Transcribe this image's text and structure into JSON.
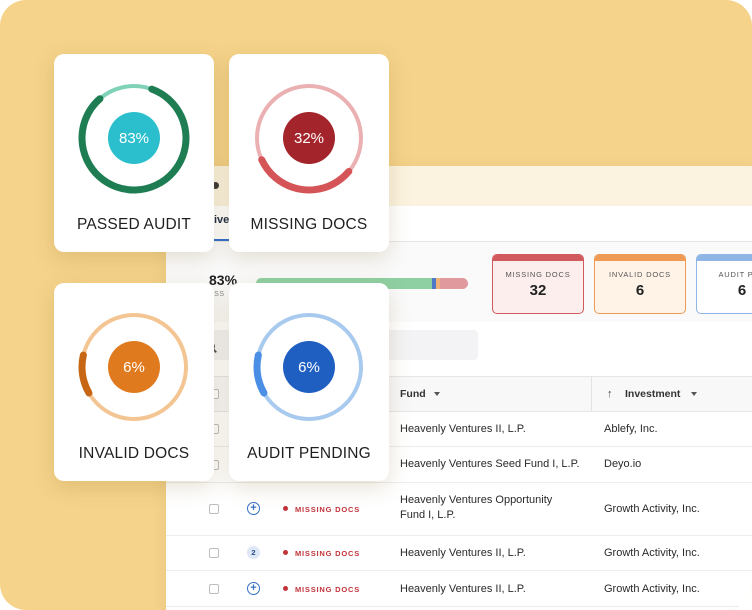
{
  "cards": [
    {
      "label": "PASSED AUDIT",
      "percent": "83%",
      "fraction": 0.83,
      "arc_color": "#1e7d52",
      "track_color": "#7fd2b8",
      "inner_color": "#2bbfcd",
      "text_color": "#ffffff"
    },
    {
      "label": "MISSING DOCS",
      "percent": "32%",
      "fraction": 0.32,
      "arc_color": "#d45457",
      "track_color": "#eab0b2",
      "inner_color": "#a3252b",
      "text_color": "#ffffff"
    },
    {
      "label": "INVALID DOCS",
      "percent": "6%",
      "fraction": 0.06,
      "arc_color": "#c76614",
      "track_color": "#f3c592",
      "inner_color": "#e07a1f",
      "text_color": "#ffffff"
    },
    {
      "label": "AUDIT PENDING",
      "percent": "6%",
      "fraction": 0.06,
      "arc_color": "#4a8ee6",
      "track_color": "#a9caef",
      "inner_color": "#1f5fc2",
      "text_color": "#ffffff"
    }
  ],
  "app": {
    "tab_fragment": "ive",
    "summary": {
      "percent": "83%",
      "sub": "ASS",
      "bar": [
        {
          "fraction": 0.83,
          "color": "#8fd0a3"
        },
        {
          "fraction": 0.02,
          "color": "#4f78c7"
        },
        {
          "fraction": 0.02,
          "color": "#f0b07a"
        },
        {
          "fraction": 0.13,
          "color": "#e09a9d"
        }
      ]
    },
    "stats": [
      {
        "label": "MISSING DOCS",
        "value": "32",
        "color": "#d05a5e",
        "bg": "#fdeeee"
      },
      {
        "label": "INVALID DOCS",
        "value": "6",
        "color": "#ee9a55",
        "bg": "#fff3e8"
      },
      {
        "label": "AUDIT PEN",
        "value": "6",
        "color": "#8fb5e6",
        "bg": "#ffffff"
      }
    ],
    "table": {
      "columns": {
        "fund": "Fund",
        "investment": "Investment"
      },
      "rows": [
        {
          "marker": "",
          "status": "",
          "fund": "Heavenly Ventures II, L.P.",
          "investment": "Ablefy, Inc."
        },
        {
          "marker": "",
          "status": "",
          "fund": "Heavenly Ventures Seed Fund I, L.P.",
          "investment": "Deyo.io"
        },
        {
          "marker": "plus",
          "status": "MISSING DOCS",
          "fund": "Heavenly Ventures Opportunity Fund I, L.P.",
          "investment": "Growth Activity, Inc."
        },
        {
          "marker": "2",
          "status": "MISSING DOCS",
          "fund": "Heavenly Ventures II, L.P.",
          "investment": "Growth Activity, Inc."
        },
        {
          "marker": "plus",
          "status": "MISSING DOCS",
          "fund": "Heavenly Ventures II, L.P.",
          "investment": "Growth Activity, Inc."
        }
      ]
    }
  }
}
